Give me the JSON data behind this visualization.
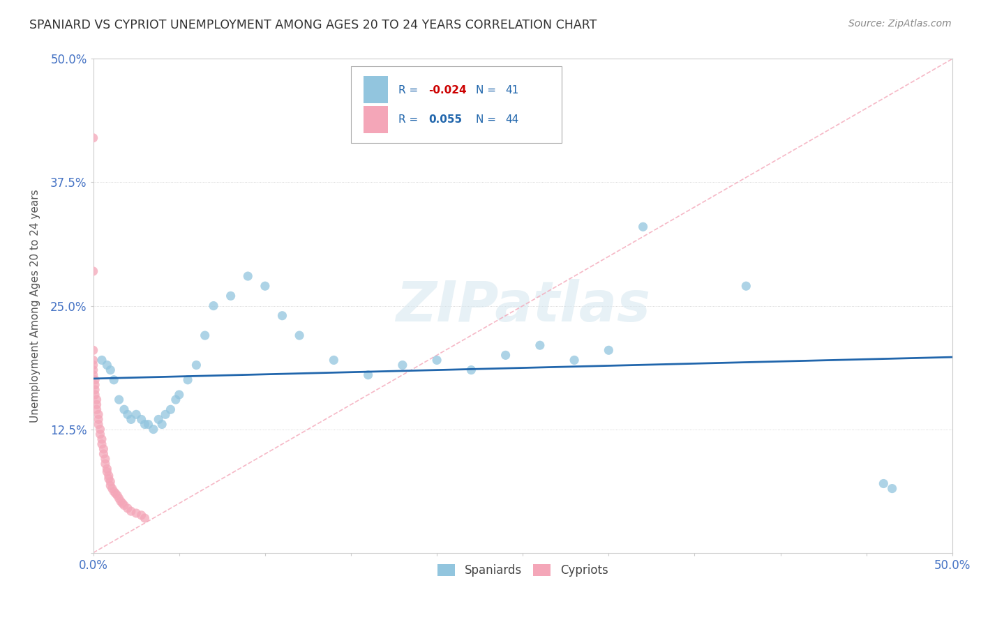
{
  "title": "SPANIARD VS CYPRIOT UNEMPLOYMENT AMONG AGES 20 TO 24 YEARS CORRELATION CHART",
  "source": "Source: ZipAtlas.com",
  "ylabel": "Unemployment Among Ages 20 to 24 years",
  "xlim": [
    0.0,
    0.5
  ],
  "ylim": [
    0.0,
    0.5
  ],
  "xticks": [
    0.0,
    0.05,
    0.1,
    0.15,
    0.2,
    0.25,
    0.3,
    0.35,
    0.4,
    0.45,
    0.5
  ],
  "yticks": [
    0.0,
    0.125,
    0.25,
    0.375,
    0.5
  ],
  "xtick_labels": [
    "0.0%",
    "",
    "",
    "",
    "",
    "",
    "",
    "",
    "",
    "",
    "50.0%"
  ],
  "ytick_labels": [
    "",
    "12.5%",
    "25.0%",
    "37.5%",
    "50.0%"
  ],
  "watermark": "ZIPatlas",
  "legend_r_blue": "-0.024",
  "legend_n_blue": "41",
  "legend_r_pink": "0.055",
  "legend_n_pink": "44",
  "blue_color": "#92c5de",
  "pink_color": "#f4a6b8",
  "trend_blue_color": "#2166ac",
  "trend_pink_color": "#f4a6b8",
  "spaniards_x": [
    0.005,
    0.008,
    0.01,
    0.012,
    0.015,
    0.018,
    0.02,
    0.022,
    0.025,
    0.028,
    0.03,
    0.032,
    0.035,
    0.038,
    0.04,
    0.042,
    0.045,
    0.048,
    0.05,
    0.055,
    0.06,
    0.065,
    0.07,
    0.08,
    0.09,
    0.1,
    0.11,
    0.12,
    0.14,
    0.16,
    0.18,
    0.2,
    0.22,
    0.24,
    0.26,
    0.28,
    0.3,
    0.32,
    0.38,
    0.46,
    0.465
  ],
  "spaniards_y": [
    0.195,
    0.19,
    0.185,
    0.175,
    0.155,
    0.145,
    0.14,
    0.135,
    0.14,
    0.135,
    0.13,
    0.13,
    0.125,
    0.135,
    0.13,
    0.14,
    0.145,
    0.155,
    0.16,
    0.175,
    0.19,
    0.22,
    0.25,
    0.26,
    0.28,
    0.27,
    0.24,
    0.22,
    0.195,
    0.18,
    0.19,
    0.195,
    0.185,
    0.2,
    0.21,
    0.195,
    0.205,
    0.33,
    0.27,
    0.07,
    0.065
  ],
  "cypriots_x": [
    0.0,
    0.0,
    0.0,
    0.0,
    0.0,
    0.0,
    0.0,
    0.001,
    0.001,
    0.001,
    0.001,
    0.002,
    0.002,
    0.002,
    0.003,
    0.003,
    0.003,
    0.004,
    0.004,
    0.005,
    0.005,
    0.006,
    0.006,
    0.007,
    0.007,
    0.008,
    0.008,
    0.009,
    0.009,
    0.01,
    0.01,
    0.011,
    0.012,
    0.013,
    0.014,
    0.015,
    0.016,
    0.017,
    0.018,
    0.02,
    0.022,
    0.025,
    0.028,
    0.03
  ],
  "cypriots_y": [
    0.42,
    0.285,
    0.205,
    0.195,
    0.19,
    0.185,
    0.18,
    0.175,
    0.17,
    0.165,
    0.16,
    0.155,
    0.15,
    0.145,
    0.14,
    0.135,
    0.13,
    0.125,
    0.12,
    0.115,
    0.11,
    0.105,
    0.1,
    0.095,
    0.09,
    0.085,
    0.082,
    0.078,
    0.075,
    0.072,
    0.068,
    0.065,
    0.062,
    0.06,
    0.058,
    0.055,
    0.052,
    0.05,
    0.048,
    0.045,
    0.042,
    0.04,
    0.038,
    0.035
  ]
}
